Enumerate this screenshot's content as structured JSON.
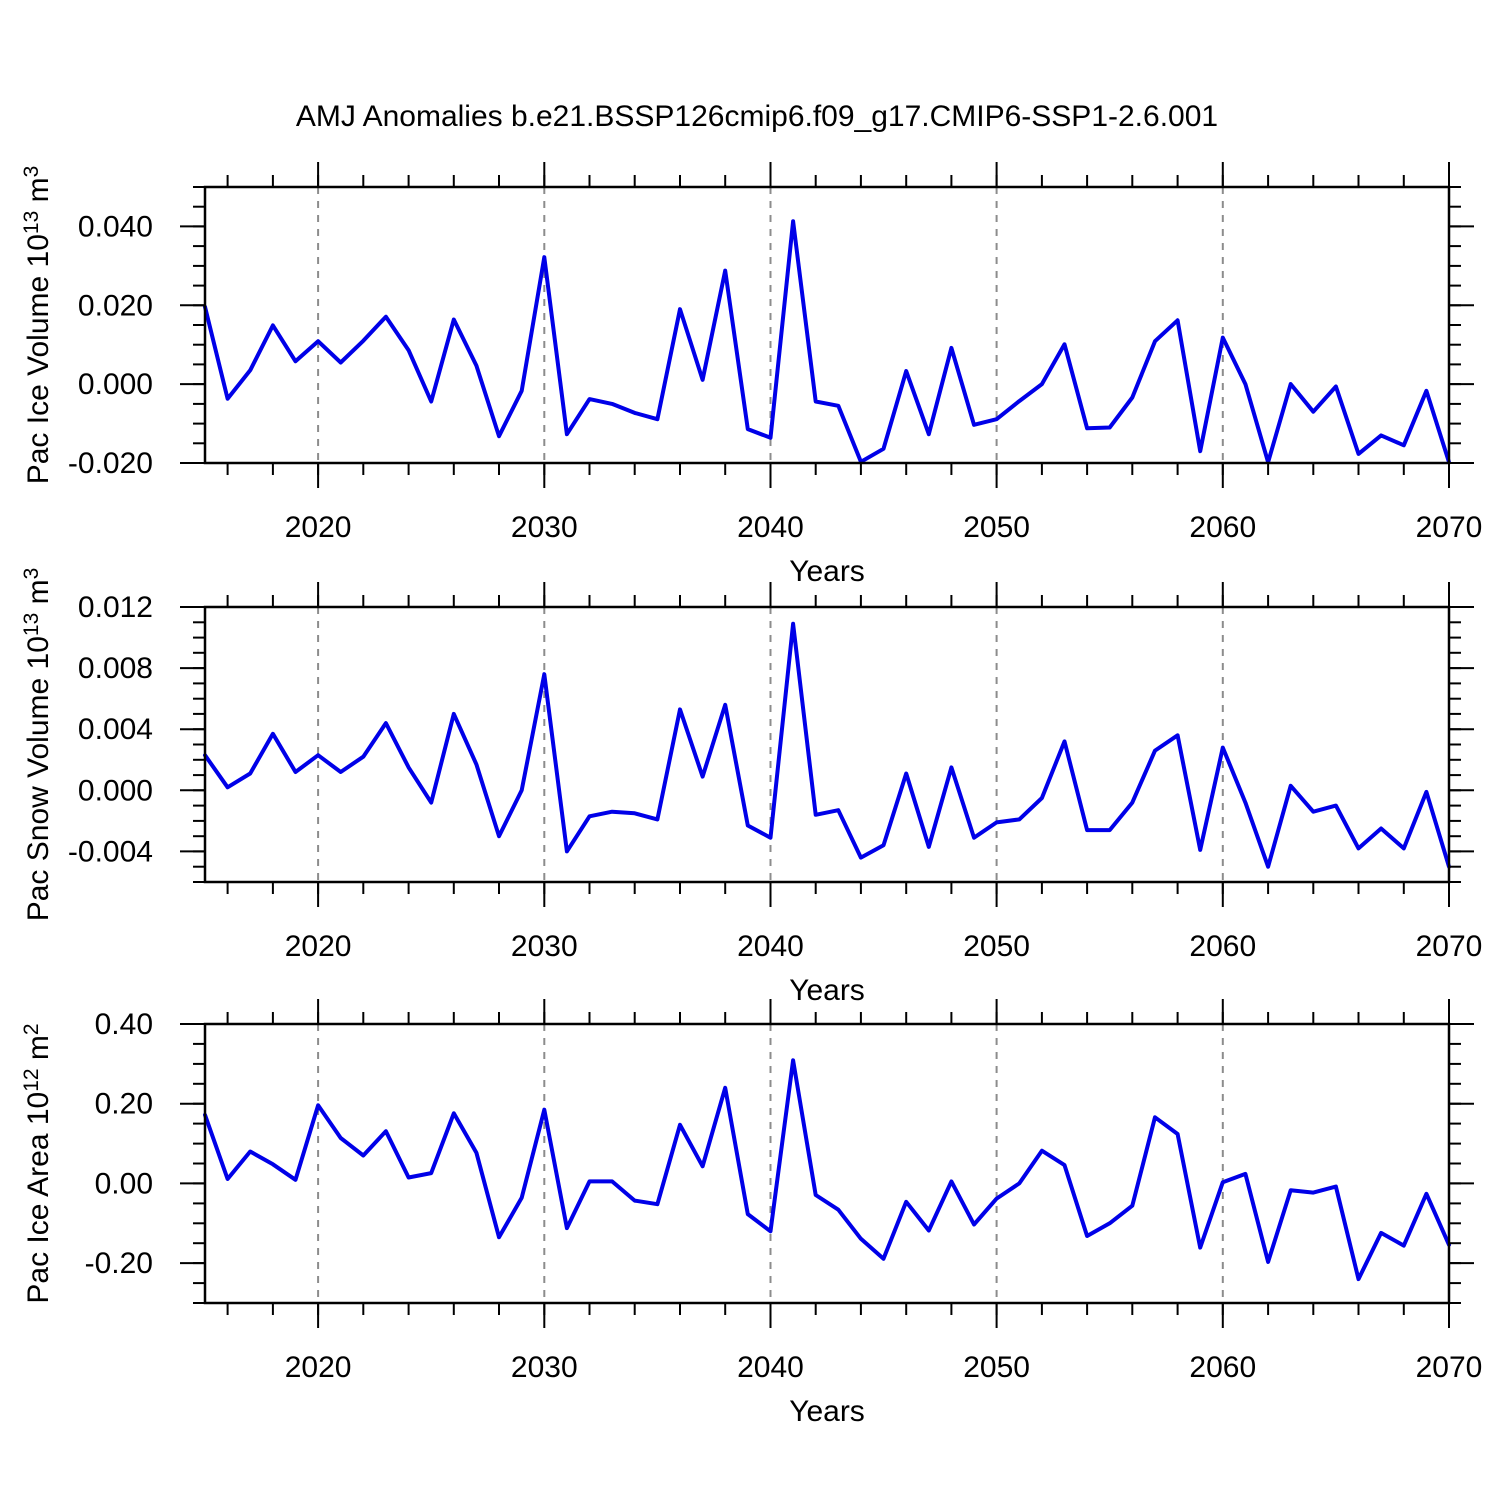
{
  "title": "AMJ Anomalies b.e21.BSSP126cmip6.f09_g17.CMIP6-SSP1-2.6.001",
  "line_color": "#0000e8",
  "grid_color": "#8c8c8c",
  "chart_data": {
    "type": "line",
    "x_label": "Years",
    "x": [
      2015,
      2016,
      2017,
      2018,
      2019,
      2020,
      2021,
      2022,
      2023,
      2024,
      2025,
      2026,
      2027,
      2028,
      2029,
      2030,
      2031,
      2032,
      2033,
      2034,
      2035,
      2036,
      2037,
      2038,
      2039,
      2040,
      2041,
      2042,
      2043,
      2044,
      2045,
      2046,
      2047,
      2048,
      2049,
      2050,
      2051,
      2052,
      2053,
      2054,
      2055,
      2056,
      2057,
      2058,
      2059,
      2060,
      2061,
      2062,
      2063,
      2064,
      2065,
      2066,
      2067,
      2068,
      2069,
      2070
    ],
    "xlim": [
      2015,
      2070
    ],
    "xticks": [
      2020,
      2030,
      2040,
      2050,
      2060,
      2070
    ],
    "xminor_start": 2016,
    "xminor_step": 2,
    "grid_x": [
      2020,
      2030,
      2040,
      2050,
      2060
    ],
    "legend": "none",
    "grid": "vertical-dashed",
    "panels": [
      {
        "name": "pac-ice-volume",
        "ylabel_parts": [
          [
            "Pac Ice Volume 10",
            0
          ],
          [
            "13",
            1
          ],
          [
            " m",
            0
          ],
          [
            "3",
            1
          ]
        ],
        "ylim": [
          -0.02,
          0.05
        ],
        "yticks": [
          [
            -0.02,
            "-0.020"
          ],
          [
            0,
            "0.000"
          ],
          [
            0.02,
            "0.020"
          ],
          [
            0.04,
            "0.040"
          ]
        ],
        "yminor_step": 0.005,
        "values": [
          0.0196,
          -0.0037,
          0.0035,
          0.0149,
          0.0058,
          0.0109,
          0.0055,
          0.011,
          0.0171,
          0.0086,
          -0.0044,
          0.0164,
          0.0047,
          -0.0132,
          -0.0017,
          0.0322,
          -0.0127,
          -0.0038,
          -0.005,
          -0.0073,
          -0.0089,
          0.019,
          0.0011,
          0.0288,
          -0.0114,
          -0.0136,
          0.0413,
          -0.0044,
          -0.0055,
          -0.0197,
          -0.0164,
          0.0033,
          -0.0127,
          0.0092,
          -0.0103,
          -0.0089,
          -0.0043,
          0.0,
          0.0101,
          -0.0112,
          -0.011,
          -0.0034,
          0.0109,
          0.0162,
          -0.017,
          0.0118,
          0.0,
          -0.0198,
          0.0,
          -0.007,
          -0.0006,
          -0.0177,
          -0.013,
          -0.0155,
          -0.0017,
          -0.0198
        ]
      },
      {
        "name": "pac-snow-volume",
        "ylabel_parts": [
          [
            "Pac Snow Volume 10",
            0
          ],
          [
            "13",
            1
          ],
          [
            " m",
            0
          ],
          [
            "3",
            1
          ]
        ],
        "ylim": [
          -0.006,
          0.012
        ],
        "yticks": [
          [
            -0.004,
            "-0.004"
          ],
          [
            0,
            "0.000"
          ],
          [
            0.004,
            "0.004"
          ],
          [
            0.008,
            "0.008"
          ],
          [
            0.012,
            "0.012"
          ]
        ],
        "yminor_step": 0.001,
        "values": [
          0.0023,
          0.0002,
          0.0011,
          0.0037,
          0.0012,
          0.0023,
          0.0012,
          0.0022,
          0.0044,
          0.0015,
          -0.0008,
          0.005,
          0.0017,
          -0.003,
          0.0,
          0.0076,
          -0.004,
          -0.0017,
          -0.0014,
          -0.0015,
          -0.0019,
          0.0053,
          0.0009,
          0.0056,
          -0.0023,
          -0.0031,
          0.0109,
          -0.0016,
          -0.0013,
          -0.0044,
          -0.0036,
          0.0011,
          -0.0037,
          0.0015,
          -0.0031,
          -0.0021,
          -0.0019,
          -0.0005,
          0.0032,
          -0.0026,
          -0.0026,
          -0.0008,
          0.0026,
          0.0036,
          -0.0039,
          0.0028,
          -0.0008,
          -0.005,
          0.0003,
          -0.0014,
          -0.001,
          -0.0038,
          -0.0025,
          -0.0038,
          -0.0001,
          -0.005
        ]
      },
      {
        "name": "pac-ice-area",
        "ylabel_parts": [
          [
            "Pac Ice Area 10",
            0
          ],
          [
            "12",
            1
          ],
          [
            " m",
            0
          ],
          [
            "2",
            1
          ]
        ],
        "ylim": [
          -0.3,
          0.4
        ],
        "yticks": [
          [
            -0.2,
            "-0.20"
          ],
          [
            0,
            "0.00"
          ],
          [
            0.2,
            "0.20"
          ],
          [
            0.4,
            "0.40"
          ]
        ],
        "yminor_step": 0.05,
        "values": [
          0.172,
          0.011,
          0.08,
          0.048,
          0.009,
          0.196,
          0.114,
          0.07,
          0.131,
          0.015,
          0.026,
          0.176,
          0.077,
          -0.135,
          -0.036,
          0.185,
          -0.112,
          0.005,
          0.005,
          -0.043,
          -0.052,
          0.147,
          0.043,
          0.24,
          -0.077,
          -0.12,
          0.309,
          -0.029,
          -0.066,
          -0.139,
          -0.189,
          -0.046,
          -0.118,
          0.005,
          -0.103,
          -0.038,
          0.0,
          0.082,
          0.046,
          -0.132,
          -0.1,
          -0.056,
          0.166,
          0.124,
          -0.161,
          0.003,
          0.024,
          -0.197,
          -0.017,
          -0.023,
          -0.008,
          -0.24,
          -0.124,
          -0.156,
          -0.026,
          -0.154
        ]
      }
    ]
  }
}
